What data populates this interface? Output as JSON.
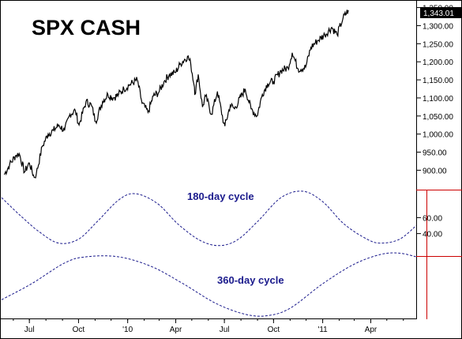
{
  "chart_data": [
    {
      "type": "line",
      "title": "SPX CASH",
      "last_value_label": "1,343.01",
      "y_ticks": [
        "1,350.00",
        "1,300.00",
        "1,250.00",
        "1,200.00",
        "1,150.00",
        "1,100.00",
        "1,050.00",
        "1,000.00",
        "950.00",
        "900.00"
      ],
      "y_tick_values": [
        1350,
        1300,
        1250,
        1200,
        1150,
        1100,
        1050,
        1000,
        950,
        900
      ],
      "ylim": [
        855,
        1360
      ],
      "x_ticks": [
        "Jul",
        "Oct",
        "'10",
        "Apr",
        "Jul",
        "Oct",
        "'11",
        "Apr"
      ],
      "x_tick_dates": [
        "2009-07-01",
        "2009-10-01",
        "2010-01-01",
        "2010-04-01",
        "2010-07-01",
        "2010-10-01",
        "2011-01-01",
        "2011-04-01"
      ],
      "xlim": [
        "2009-05-10",
        "2011-06-25"
      ],
      "series": [
        {
          "color": "#000000",
          "points": [
            [
              "2009-05-15",
              888
            ],
            [
              "2009-05-25",
              915
            ],
            [
              "2009-06-05",
              940
            ],
            [
              "2009-06-12",
              946
            ],
            [
              "2009-06-22",
              895
            ],
            [
              "2009-07-01",
              920
            ],
            [
              "2009-07-10",
              880
            ],
            [
              "2009-07-14",
              890
            ],
            [
              "2009-07-25",
              965
            ],
            [
              "2009-08-05",
              1000
            ],
            [
              "2009-08-15",
              1010
            ],
            [
              "2009-08-25",
              1025
            ],
            [
              "2009-09-05",
              1010
            ],
            [
              "2009-09-15",
              1055
            ],
            [
              "2009-09-25",
              1065
            ],
            [
              "2009-10-02",
              1025
            ],
            [
              "2009-10-15",
              1090
            ],
            [
              "2009-10-25",
              1080
            ],
            [
              "2009-11-02",
              1035
            ],
            [
              "2009-11-15",
              1090
            ],
            [
              "2009-11-25",
              1110
            ],
            [
              "2009-12-05",
              1100
            ],
            [
              "2009-12-15",
              1110
            ],
            [
              "2009-12-25",
              1125
            ],
            [
              "2010-01-05",
              1137
            ],
            [
              "2010-01-19",
              1150
            ],
            [
              "2010-01-28",
              1085
            ],
            [
              "2010-02-08",
              1060
            ],
            [
              "2010-02-18",
              1105
            ],
            [
              "2010-02-28",
              1115
            ],
            [
              "2010-03-10",
              1145
            ],
            [
              "2010-03-20",
              1165
            ],
            [
              "2010-03-31",
              1170
            ],
            [
              "2010-04-10",
              1195
            ],
            [
              "2010-04-23",
              1215
            ],
            [
              "2010-04-29",
              1195
            ],
            [
              "2010-05-06",
              1130
            ],
            [
              "2010-05-07",
              1110
            ],
            [
              "2010-05-13",
              1165
            ],
            [
              "2010-05-21",
              1075
            ],
            [
              "2010-05-27",
              1105
            ],
            [
              "2010-06-07",
              1055
            ],
            [
              "2010-06-18",
              1118
            ],
            [
              "2010-06-30",
              1030
            ],
            [
              "2010-07-02",
              1022
            ],
            [
              "2010-07-12",
              1080
            ],
            [
              "2010-07-20",
              1070
            ],
            [
              "2010-08-09",
              1125
            ],
            [
              "2010-08-20",
              1070
            ],
            [
              "2010-08-31",
              1050
            ],
            [
              "2010-09-10",
              1110
            ],
            [
              "2010-09-20",
              1140
            ],
            [
              "2010-10-01",
              1146
            ],
            [
              "2010-10-15",
              1176
            ],
            [
              "2010-10-28",
              1183
            ],
            [
              "2010-11-05",
              1225
            ],
            [
              "2010-11-16",
              1180
            ],
            [
              "2010-11-30",
              1185
            ],
            [
              "2010-12-10",
              1240
            ],
            [
              "2010-12-22",
              1258
            ],
            [
              "2011-01-05",
              1275
            ],
            [
              "2011-01-18",
              1295
            ],
            [
              "2011-01-28",
              1275
            ],
            [
              "2011-02-08",
              1320
            ],
            [
              "2011-02-18",
              1343
            ]
          ]
        }
      ]
    },
    {
      "type": "line",
      "title": "",
      "y_ticks": [
        "60.00",
        "40.00"
      ],
      "y_tick_values": [
        60,
        40
      ],
      "ylim": [
        5,
        95
      ],
      "x_ticks": [
        "Jul",
        "Oct",
        "'10",
        "Apr",
        "Jul",
        "Oct",
        "'11",
        "Apr"
      ],
      "xlim": [
        "2009-05-10",
        "2011-06-25"
      ],
      "series": [
        {
          "name": "180-day cycle",
          "color": "#1a1a8c",
          "dashed": true,
          "points": [
            [
              "2009-05-10",
              85
            ],
            [
              "2009-06-15",
              62
            ],
            [
              "2009-07-20",
              42
            ],
            [
              "2009-08-25",
              28
            ],
            [
              "2009-10-01",
              33
            ],
            [
              "2009-11-05",
              55
            ],
            [
              "2009-12-15",
              82
            ],
            [
              "2010-01-15",
              90
            ],
            [
              "2010-02-25",
              78
            ],
            [
              "2010-04-05",
              52
            ],
            [
              "2010-05-15",
              32
            ],
            [
              "2010-06-20",
              25
            ],
            [
              "2010-07-25",
              32
            ],
            [
              "2010-09-01",
              55
            ],
            [
              "2010-10-15",
              85
            ],
            [
              "2010-11-25",
              93
            ],
            [
              "2011-01-01",
              80
            ],
            [
              "2011-02-10",
              52
            ],
            [
              "2011-03-25",
              33
            ],
            [
              "2011-04-20",
              28
            ],
            [
              "2011-05-25",
              33
            ],
            [
              "2011-06-25",
              50
            ]
          ]
        },
        {
          "name": "360-day cycle",
          "color": "#1a1a8c",
          "dashed": true,
          "points": [
            [
              "2009-05-10",
              -35
            ],
            [
              "2009-07-05",
              -22
            ],
            [
              "2009-09-05",
              -5
            ],
            [
              "2009-10-15",
              0
            ],
            [
              "2009-12-15",
              0
            ],
            [
              "2010-02-15",
              -8
            ],
            [
              "2010-04-15",
              -22
            ],
            [
              "2010-06-15",
              -38
            ],
            [
              "2010-08-10",
              -47
            ],
            [
              "2010-09-20",
              -48
            ],
            [
              "2010-11-01",
              -42
            ],
            [
              "2011-01-01",
              -22
            ],
            [
              "2011-03-01",
              -6
            ],
            [
              "2011-04-20",
              2
            ],
            [
              "2011-05-25",
              3
            ],
            [
              "2011-06-25",
              0
            ]
          ]
        }
      ]
    }
  ],
  "legend_labels": {
    "cycle180": "180-day cycle",
    "cycle360": "360-day cycle"
  },
  "colors": {
    "price": "#000000",
    "cycles": "#1a1a8c",
    "marker_lines": "#cc0000",
    "axis": "#000000",
    "badge_bg": "#000000"
  }
}
